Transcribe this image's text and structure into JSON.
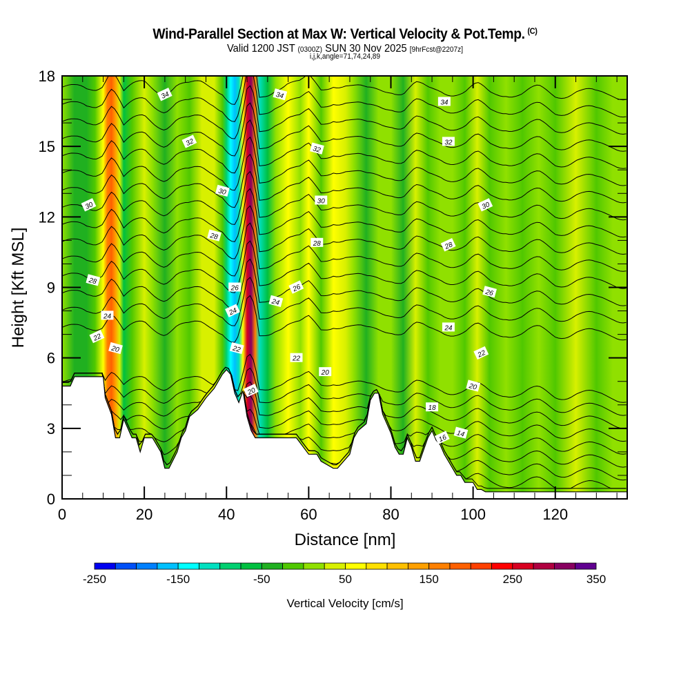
{
  "header": {
    "title": "Wind-Parallel Section at Max W: Vertical Velocity & Pot.Temp.",
    "copyright": "(C)",
    "valid_prefix": "Valid 1200 JST",
    "valid_utc": "(0300Z)",
    "valid_date": "SUN 30 Nov 2025",
    "forecast": "[9hrFcst@2207z]",
    "grid_info": "i,j,k,angle=71,74,24,89"
  },
  "chart_data": {
    "type": "heatmap",
    "title": "Wind-Parallel Section at Max W: Vertical Velocity & Pot.Temp.",
    "xlabel": "Distance [nm]",
    "ylabel": "Height [Kft MSL]",
    "xlim": [
      0,
      137.5
    ],
    "ylim": [
      0,
      18
    ],
    "x_ticks": [
      0,
      20,
      40,
      60,
      80,
      100,
      120
    ],
    "x_tick_labels": [
      "0",
      "20",
      "40",
      "60",
      "80",
      "100",
      "120"
    ],
    "y_ticks": [
      0,
      3,
      6,
      9,
      12,
      15,
      18
    ],
    "y_tick_labels": [
      "0",
      "3",
      "6",
      "9",
      "12",
      "15",
      "18"
    ],
    "colorbar": {
      "label": "Vertical Velocity [cm/s]",
      "min": -250,
      "max": 350,
      "step": 25,
      "tick_labels": [
        "-250",
        "-150",
        "-50",
        "50",
        "150",
        "250",
        "350"
      ],
      "tick_values": [
        -250,
        -150,
        -50,
        50,
        150,
        250,
        350
      ],
      "colors": [
        "#0000f0",
        "#0050f8",
        "#0080ff",
        "#00c0ff",
        "#00ffff",
        "#00e0c0",
        "#00d070",
        "#00c040",
        "#20b020",
        "#50c800",
        "#90e000",
        "#d8f000",
        "#ffff00",
        "#ffe000",
        "#ffc000",
        "#ffa000",
        "#ff8000",
        "#ff6000",
        "#ff4000",
        "#ff0000",
        "#d80020",
        "#b00040",
        "#880060",
        "#600090"
      ]
    },
    "velocity_profile": {
      "distance_nm": [
        0,
        3,
        6,
        8,
        10,
        11,
        12,
        13,
        14,
        15,
        17,
        20,
        22,
        25,
        28,
        31,
        34,
        37,
        39,
        40,
        41,
        42,
        43,
        44,
        45,
        46,
        47,
        48,
        50,
        52,
        55,
        58,
        60,
        63,
        66,
        69,
        71,
        74,
        77,
        80,
        83,
        86,
        89,
        92,
        95,
        98,
        101,
        104,
        108,
        112,
        116,
        120,
        125,
        130,
        134,
        137.5
      ],
      "w_cm_s": [
        0,
        -30,
        -40,
        -10,
        60,
        150,
        190,
        140,
        40,
        -60,
        -20,
        40,
        10,
        -30,
        20,
        -10,
        35,
        25,
        -20,
        -80,
        -140,
        -170,
        -120,
        60,
        260,
        300,
        160,
        -120,
        -60,
        20,
        60,
        20,
        70,
        -20,
        60,
        40,
        0,
        -40,
        0,
        20,
        -30,
        30,
        -10,
        20,
        0,
        -20,
        30,
        -20,
        10,
        -25,
        20,
        -10,
        30,
        -20,
        10,
        0
      ]
    },
    "terrain_kft": {
      "distance_nm": [
        0,
        2,
        3,
        10,
        10.5,
        12,
        13,
        14,
        15,
        17,
        18,
        19,
        20,
        22,
        24,
        25,
        26,
        28,
        29,
        30,
        31,
        33,
        35,
        37,
        39,
        40,
        41,
        42,
        43,
        44,
        45,
        46,
        47,
        48,
        49,
        50,
        52,
        55,
        57,
        60,
        62,
        63,
        66,
        67,
        70,
        71,
        72,
        74,
        75,
        76,
        77,
        78,
        79,
        80,
        81,
        82,
        83,
        84,
        85,
        86,
        87,
        89,
        90,
        91,
        92,
        93,
        94,
        95,
        96,
        97,
        98,
        99,
        100,
        101,
        102,
        103,
        104,
        137.5
      ],
      "height": [
        4.8,
        4.8,
        5.2,
        5.2,
        4.3,
        3.6,
        2.6,
        2.6,
        3.4,
        2.6,
        2.6,
        2.0,
        2.6,
        2.6,
        2.0,
        1.3,
        1.3,
        2.0,
        2.6,
        2.9,
        3.5,
        3.8,
        4.3,
        4.7,
        5.3,
        5.5,
        5.3,
        4.5,
        4.1,
        4.6,
        3.5,
        2.9,
        2.6,
        2.6,
        2.6,
        2.6,
        2.6,
        2.6,
        2.6,
        1.9,
        1.9,
        1.6,
        1.3,
        1.3,
        1.9,
        2.6,
        2.9,
        3.2,
        4.2,
        4.5,
        4.5,
        3.6,
        3.2,
        2.8,
        2.2,
        1.9,
        1.9,
        2.6,
        2.2,
        1.6,
        1.6,
        2.6,
        2.9,
        2.5,
        2.3,
        1.9,
        1.6,
        1.3,
        1.0,
        1.0,
        0.7,
        0.7,
        0.7,
        0.4,
        0.4,
        0.3,
        0.3,
        0.3
      ]
    },
    "contours": {
      "variable": "Potential Temperature",
      "levels": [
        12,
        13,
        14,
        15,
        16,
        17,
        18,
        19,
        20,
        21,
        22,
        23,
        24,
        25,
        26,
        27,
        28,
        29,
        30,
        31,
        32,
        33,
        34,
        35
      ],
      "labels": [
        {
          "text": "34",
          "at_nm": 25,
          "at_kft": 17.2
        },
        {
          "text": "34",
          "at_nm": 53,
          "at_kft": 17.2
        },
        {
          "text": "34",
          "at_nm": 93,
          "at_kft": 16.9
        },
        {
          "text": "32",
          "at_nm": 31,
          "at_kft": 15.2
        },
        {
          "text": "32",
          "at_nm": 62,
          "at_kft": 14.9
        },
        {
          "text": "32",
          "at_nm": 94,
          "at_kft": 15.2
        },
        {
          "text": "30",
          "at_nm": 6.5,
          "at_kft": 12.5
        },
        {
          "text": "30",
          "at_nm": 39,
          "at_kft": 13.1
        },
        {
          "text": "30",
          "at_nm": 63,
          "at_kft": 12.7
        },
        {
          "text": "30",
          "at_nm": 103,
          "at_kft": 12.5
        },
        {
          "text": "28",
          "at_nm": 37,
          "at_kft": 11.2
        },
        {
          "text": "28",
          "at_nm": 62,
          "at_kft": 10.9
        },
        {
          "text": "28",
          "at_nm": 94,
          "at_kft": 10.8
        },
        {
          "text": "28",
          "at_nm": 7.5,
          "at_kft": 9.3
        },
        {
          "text": "26",
          "at_nm": 42,
          "at_kft": 9.0
        },
        {
          "text": "26",
          "at_nm": 57,
          "at_kft": 9.0
        },
        {
          "text": "26",
          "at_nm": 104,
          "at_kft": 8.8
        },
        {
          "text": "24",
          "at_nm": 11,
          "at_kft": 7.8
        },
        {
          "text": "24",
          "at_nm": 41.5,
          "at_kft": 8.0
        },
        {
          "text": "24",
          "at_nm": 52,
          "at_kft": 8.4
        },
        {
          "text": "24",
          "at_nm": 94,
          "at_kft": 7.3
        },
        {
          "text": "22",
          "at_nm": 8.5,
          "at_kft": 6.9
        },
        {
          "text": "22",
          "at_nm": 42.5,
          "at_kft": 6.4
        },
        {
          "text": "22",
          "at_nm": 57,
          "at_kft": 6.0
        },
        {
          "text": "22",
          "at_nm": 102,
          "at_kft": 6.2
        },
        {
          "text": "20",
          "at_nm": 13,
          "at_kft": 6.4
        },
        {
          "text": "20",
          "at_nm": 64,
          "at_kft": 5.4
        },
        {
          "text": "20",
          "at_nm": 46,
          "at_kft": 4.6
        },
        {
          "text": "20",
          "at_nm": 100,
          "at_kft": 4.8
        },
        {
          "text": "18",
          "at_nm": 90,
          "at_kft": 3.9
        },
        {
          "text": "16",
          "at_nm": 92.5,
          "at_kft": 2.6
        },
        {
          "text": "14",
          "at_nm": 97,
          "at_kft": 2.8
        }
      ]
    }
  }
}
